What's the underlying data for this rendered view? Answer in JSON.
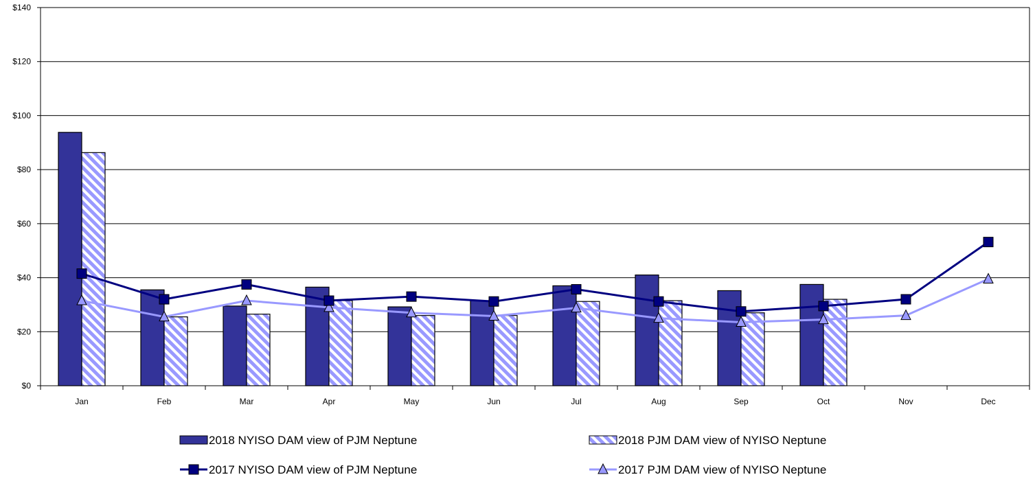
{
  "chart_data": {
    "type": "bar",
    "categories": [
      "Jan",
      "Feb",
      "Mar",
      "Apr",
      "May",
      "Jun",
      "Jul",
      "Aug",
      "Sep",
      "Oct",
      "Nov",
      "Dec"
    ],
    "ylim": [
      0,
      140
    ],
    "yticks": [
      0,
      20,
      40,
      60,
      80,
      100,
      120,
      140
    ],
    "ytick_labels": [
      "$0",
      "$20",
      "$40",
      "$60",
      "$80",
      "$100",
      "$120",
      "$140"
    ],
    "grid": true,
    "legend_position": "bottom",
    "series": [
      {
        "name": "2018 NYISO DAM view of PJM Neptune",
        "type": "bar",
        "style": "solid",
        "color": "#333399",
        "values": [
          93.8,
          35.5,
          29.5,
          36.5,
          29.2,
          31.5,
          37.0,
          41.0,
          35.2,
          37.5,
          null,
          null
        ]
      },
      {
        "name": "2018 PJM DAM view of NYISO Neptune",
        "type": "bar",
        "style": "hatched",
        "color": "#9999ff",
        "values": [
          86.3,
          25.5,
          26.5,
          31.5,
          26.0,
          26.0,
          31.2,
          31.5,
          27.0,
          32.0,
          null,
          null
        ]
      },
      {
        "name": "2017 NYISO DAM view of PJM Neptune",
        "type": "line",
        "marker": "square",
        "color": "#000080",
        "values": [
          41.5,
          32.0,
          37.5,
          31.5,
          33.0,
          31.2,
          35.7,
          31.2,
          27.5,
          29.5,
          32.0,
          53.2
        ]
      },
      {
        "name": "2017 PJM DAM view of NYISO Neptune",
        "type": "line",
        "marker": "triangle",
        "color": "#9999ff",
        "values": [
          31.5,
          25.5,
          31.5,
          29.0,
          27.0,
          25.8,
          28.8,
          25.0,
          23.5,
          24.5,
          26.0,
          39.5
        ]
      }
    ]
  }
}
